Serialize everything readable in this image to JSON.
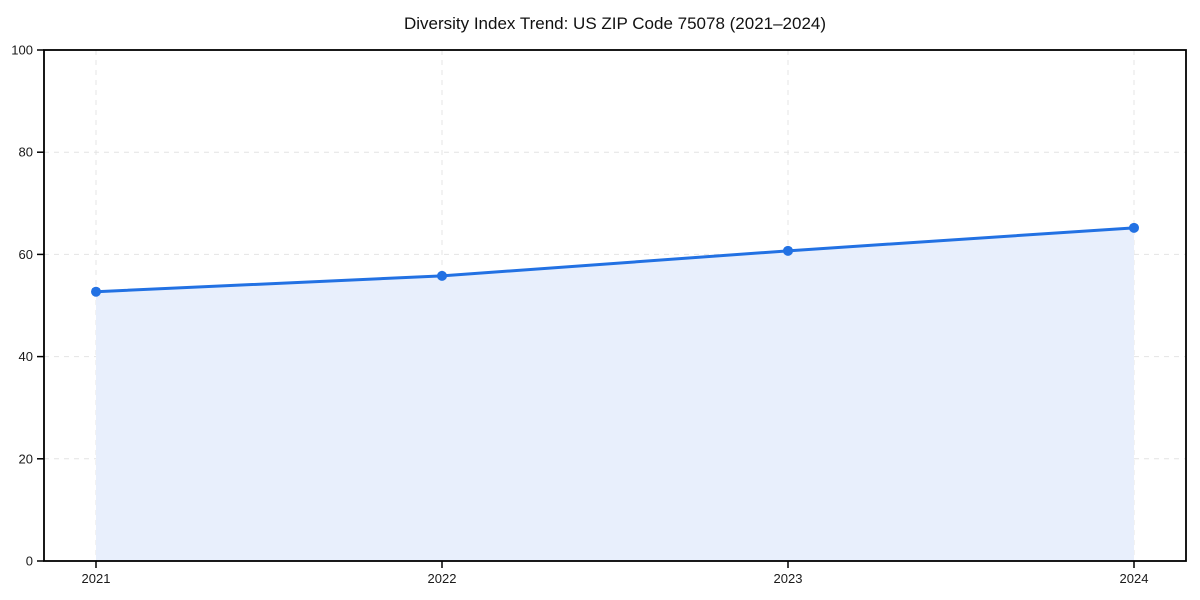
{
  "chart_data": {
    "type": "area",
    "title": "Diversity Index Trend: US ZIP Code 75078 (2021–2024)",
    "x": [
      2021,
      2022,
      2023,
      2024
    ],
    "xticklabels": [
      "2021",
      "2022",
      "2023",
      "2024"
    ],
    "series": [
      {
        "name": "Diversity Index",
        "values": [
          52.7,
          55.8,
          60.7,
          65.2
        ]
      }
    ],
    "xlabel": "",
    "ylabel": "",
    "ylim": [
      0,
      100
    ],
    "yticks": [
      0,
      20,
      40,
      60,
      80,
      100
    ],
    "grid": true,
    "grid_style": "dashed",
    "legend": false,
    "colors": {
      "line": "#2271e3",
      "marker": "#2271e3",
      "fill": "#e8effc",
      "grid": "#e4e4e4",
      "spine": "#000000",
      "text": "#1a1a1a",
      "title": "#111111",
      "background": "#ffffff"
    }
  }
}
